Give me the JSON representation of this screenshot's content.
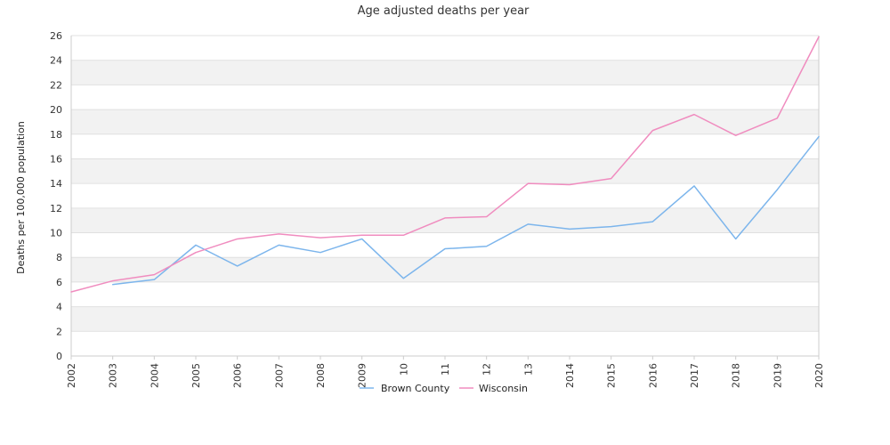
{
  "chart_data": {
    "type": "line",
    "title": "Age adjusted deaths per year",
    "xlabel": "",
    "ylabel": "Deaths per 100,000 population",
    "x": [
      "2002",
      "2003",
      "2004",
      "2005",
      "2006",
      "2007",
      "2008",
      "2009",
      "2010",
      "2011",
      "2012",
      "2013",
      "2014",
      "2015",
      "2016",
      "2017",
      "2018",
      "2019",
      "2020"
    ],
    "xtick_labels": [
      "2002",
      "2003",
      "2004",
      "2005",
      "2006",
      "2007",
      "2008",
      "2009",
      "10",
      "11",
      "12",
      "13",
      "2014",
      "2015",
      "2016",
      "2017",
      "2018",
      "2019",
      "2020"
    ],
    "ylim": [
      0,
      26
    ],
    "yticks": [
      0,
      2,
      4,
      6,
      8,
      10,
      12,
      14,
      16,
      18,
      20,
      22,
      24,
      26
    ],
    "grid": "horizontal alternating bands",
    "legend_placement": "bottom-center",
    "series": [
      {
        "name": "Brown County",
        "color": "#7cb5ec",
        "values": [
          null,
          5.8,
          6.2,
          9.0,
          7.3,
          9.0,
          8.4,
          9.5,
          6.3,
          8.7,
          8.9,
          10.7,
          10.3,
          10.5,
          10.9,
          13.8,
          9.5,
          13.5,
          17.8
        ]
      },
      {
        "name": "Wisconsin",
        "color": "#f08cbf",
        "values": [
          5.2,
          6.1,
          6.6,
          8.4,
          9.5,
          9.9,
          9.6,
          9.8,
          9.8,
          11.2,
          11.3,
          14.0,
          13.9,
          14.4,
          18.3,
          19.6,
          17.9,
          19.3,
          25.9
        ]
      }
    ]
  },
  "colors": {
    "band": "#f2f2f2",
    "gridline": "#e0e0e0",
    "axis": "#cccccc"
  }
}
